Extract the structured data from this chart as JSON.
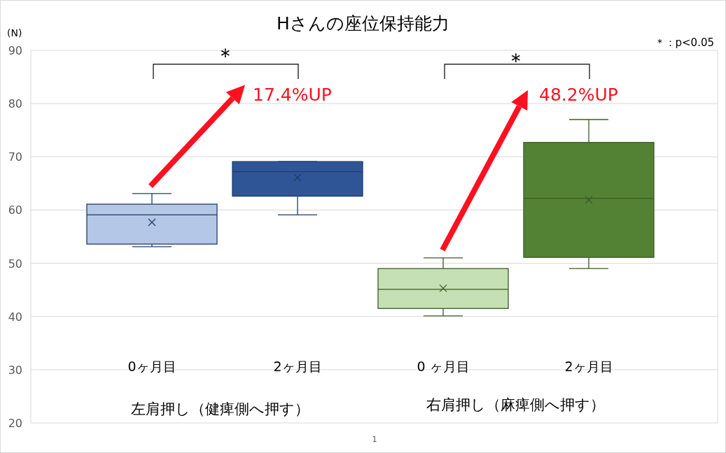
{
  "chart_data": {
    "type": "box",
    "title": "Hさんの座位保持能力",
    "ylabel": "(N)",
    "categories": [
      "0ヶ月目",
      "2ヶ月目",
      "0 ヶ月目",
      "2ヶ月目"
    ],
    "boxes": [
      {
        "low": 53.1,
        "q1": 53.6,
        "median": 59.1,
        "q3": 61.1,
        "high": 63.1,
        "mean": 57.7
      },
      {
        "low": 59.1,
        "q1": 62.6,
        "median": 67.2,
        "q3": 69.1,
        "high": 69.1,
        "mean": 66.1
      },
      {
        "low": 40.1,
        "q1": 41.5,
        "median": 45.1,
        "q3": 49.0,
        "high": 51.0,
        "mean": 45.3
      },
      {
        "low": 49.0,
        "q1": 51.1,
        "median": 62.2,
        "q3": 72.7,
        "high": 77.0,
        "mean": 61.9
      }
    ],
    "colors": [
      "#b4c7e7",
      "#2f5597",
      "#c5e0b4",
      "#548235"
    ],
    "ylim": [
      20,
      90
    ],
    "yticks": [
      20,
      30,
      40,
      50,
      60,
      70,
      80,
      90
    ],
    "grid": "y",
    "annotations": [
      "＊",
      "＊",
      "17.4%UP",
      "48.2%UP",
      "＊：p<0.05",
      "左肩押し（健痺側へ押す）",
      "右肩押し（麻痺側へ押す）",
      "1"
    ]
  }
}
